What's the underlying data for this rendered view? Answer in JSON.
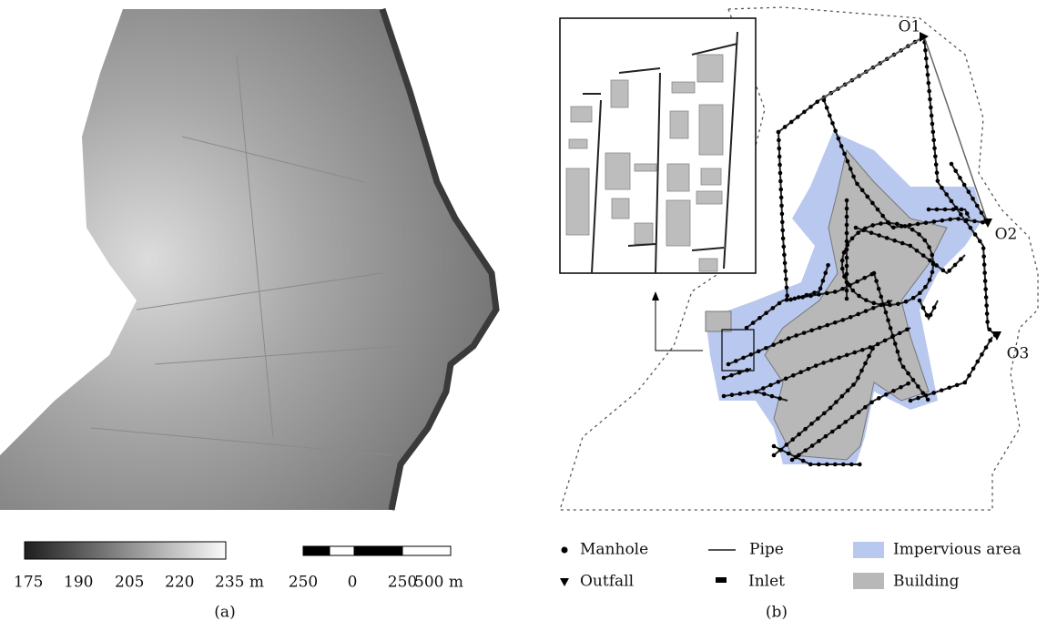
{
  "panel_a": {
    "label": "(a)",
    "colorbar": {
      "labels": [
        "175",
        "190",
        "205",
        "220",
        "235 m"
      ]
    },
    "scalebar": {
      "labels": [
        "250",
        "0",
        "250",
        "500 m"
      ]
    }
  },
  "panel_b": {
    "label": "(b)",
    "outfalls": [
      "O1",
      "O2",
      "O3"
    ],
    "legend": {
      "manhole": "Manhole",
      "pipe": "Pipe",
      "impervious": "Impervious area",
      "outfall": "Outfall",
      "inlet": "Inlet",
      "building": "Building"
    }
  }
}
